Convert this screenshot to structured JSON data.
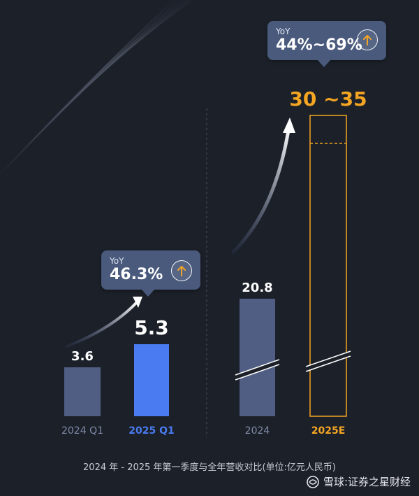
{
  "chart_data": {
    "type": "bar",
    "categories": [
      "2024 Q1",
      "2025 Q1",
      "2024",
      "2025E"
    ],
    "values": [
      3.6,
      5.3,
      20.8,
      32.5
    ],
    "range_2025E": [
      30,
      35
    ],
    "value_labels": [
      "3.6",
      "5.3",
      "20.8",
      "30 ~35"
    ],
    "colors": {
      "base": "#4f5e82",
      "highlight": "#4a7bf0",
      "forecast_outline": "#f4a623",
      "arrow": "#f4a623",
      "label_white": "#ffffff",
      "label_orange": "#f4a623",
      "q1_category": "#7f8aa6",
      "highlight_category": "#4a7bf0"
    },
    "yoy": [
      {
        "label": "YoY",
        "value": "46.3%"
      },
      {
        "label": "YoY",
        "value": "44%~69%"
      }
    ],
    "footnote": "2024 年 - 2025 年第一季度与全年营收对比(单位:亿元人民币)"
  },
  "watermark": {
    "icon": "snowball-logo-icon",
    "text": "雪球:证券之星财经"
  }
}
